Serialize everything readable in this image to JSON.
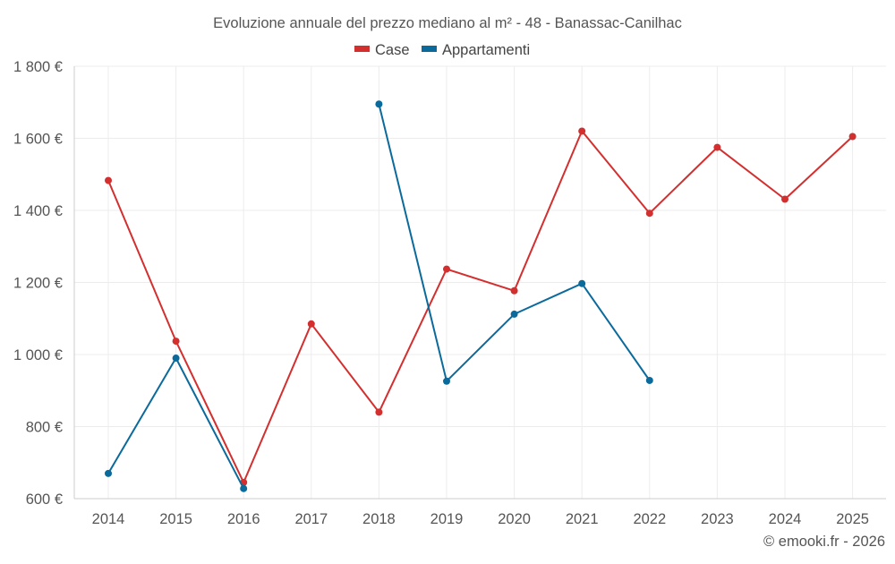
{
  "chart_data": {
    "type": "line",
    "title": "Evoluzione annuale del prezzo mediano al m² - 48 - Banassac-Canilhac",
    "xlabel": "",
    "ylabel": "",
    "categories": [
      "2014",
      "2015",
      "2016",
      "2017",
      "2018",
      "2019",
      "2020",
      "2021",
      "2022",
      "2023",
      "2024",
      "2025"
    ],
    "ylim": [
      600,
      1800
    ],
    "yticks": [
      600,
      800,
      1000,
      1200,
      1400,
      1600,
      1800
    ],
    "ytick_labels": [
      "600 €",
      "800 €",
      "1 000 €",
      "1 200 €",
      "1 400 €",
      "1 600 €",
      "1 800 €"
    ],
    "grid": true,
    "legend_position": "top-center",
    "series": [
      {
        "name": "Case",
        "color": "#d32f2f",
        "values": [
          1483,
          1037,
          645,
          1085,
          840,
          1237,
          1177,
          1620,
          1392,
          1575,
          1431,
          1605
        ]
      },
      {
        "name": "Appartamenti",
        "color": "#0b6a9c",
        "values": [
          670,
          990,
          628,
          null,
          1695,
          926,
          1112,
          1197,
          928,
          null,
          null,
          null
        ]
      }
    ],
    "credit": "© emooki.fr - 2026"
  }
}
